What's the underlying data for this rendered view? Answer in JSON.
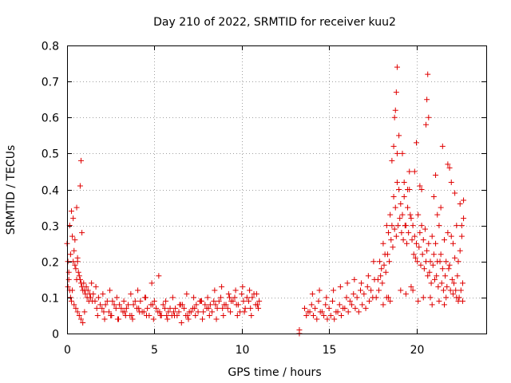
{
  "chart_data": {
    "type": "scatter",
    "title": "Day 210 of 2022, SRMTID for receiver kuu2",
    "xlabel": "GPS time / hours",
    "ylabel": "SRMTID / TECUs",
    "xlim": [
      0,
      24
    ],
    "ylim": [
      0,
      0.8
    ],
    "xticks": [
      0,
      5,
      10,
      15,
      20
    ],
    "xtick_labels": [
      "0",
      "5",
      "10",
      "15",
      "20"
    ],
    "yticks": [
      0,
      0.1,
      0.2,
      0.3,
      0.4,
      0.5,
      0.6,
      0.7,
      0.8
    ],
    "ytick_labels": [
      "0",
      "0.1",
      "0.2",
      "0.3",
      "0.4",
      "0.5",
      "0.6",
      "0.7",
      "0.8"
    ],
    "grid": true,
    "marker": "+",
    "color": "#e00000",
    "series": [
      {
        "name": "SRMTID",
        "x": [
          0.0,
          0.05,
          0.1,
          0.15,
          0.2,
          0.25,
          0.3,
          0.35,
          0.4,
          0.45,
          0.5,
          0.55,
          0.6,
          0.65,
          0.7,
          0.75,
          0.8,
          0.85,
          0.9,
          0.95,
          1.0,
          1.05,
          1.1,
          1.15,
          1.2,
          1.25,
          1.3,
          1.35,
          1.4,
          1.45,
          1.5,
          0.1,
          0.2,
          0.3,
          0.4,
          0.5,
          0.6,
          0.7,
          0.8,
          0.9,
          1.0,
          0.35,
          0.55,
          0.75,
          0.8,
          0.85,
          0.6,
          0.45,
          0.25,
          0.15,
          0.05,
          1.6,
          1.8,
          2.0,
          2.2,
          2.4,
          2.6,
          2.8,
          3.0,
          3.2,
          3.4,
          3.6,
          3.8,
          4.0,
          4.2,
          4.4,
          4.6,
          4.8,
          5.0,
          5.2,
          5.4,
          5.6,
          5.8,
          6.0,
          6.2,
          6.4,
          6.6,
          6.8,
          7.0,
          7.2,
          7.4,
          7.6,
          7.8,
          8.0,
          8.2,
          8.4,
          8.6,
          8.8,
          9.0,
          9.2,
          9.4,
          9.6,
          9.8,
          10.0,
          10.2,
          10.4,
          10.6,
          10.8,
          11.0,
          1.7,
          1.9,
          2.1,
          2.3,
          2.5,
          2.7,
          2.9,
          3.1,
          3.3,
          3.5,
          3.7,
          3.9,
          4.1,
          4.3,
          4.5,
          4.7,
          4.9,
          5.1,
          5.3,
          5.5,
          5.7,
          5.9,
          6.1,
          6.3,
          6.5,
          6.7,
          6.9,
          7.1,
          7.3,
          7.5,
          7.7,
          7.9,
          8.1,
          8.3,
          8.5,
          8.7,
          8.9,
          9.1,
          9.3,
          9.5,
          9.7,
          9.9,
          10.1,
          10.3,
          10.5,
          10.7,
          10.9,
          1.65,
          2.05,
          2.45,
          2.85,
          3.25,
          3.65,
          4.05,
          4.45,
          4.85,
          5.25,
          5.65,
          6.05,
          6.45,
          6.85,
          7.25,
          7.65,
          8.05,
          8.45,
          8.85,
          9.25,
          9.65,
          10.05,
          10.45,
          10.85,
          1.75,
          2.15,
          2.55,
          2.95,
          3.35,
          3.75,
          4.15,
          4.55,
          4.95,
          5.35,
          5.75,
          6.15,
          6.55,
          6.95,
          7.35,
          7.75,
          8.15,
          8.55,
          8.95,
          9.35,
          9.75,
          10.15,
          10.55,
          10.95,
          13.3,
          13.3,
          13.6,
          13.8,
          14.0,
          14.2,
          14.4,
          14.6,
          14.8,
          15.0,
          15.2,
          15.4,
          15.6,
          15.8,
          16.0,
          16.2,
          16.4,
          16.6,
          16.8,
          17.0,
          17.2,
          17.4,
          17.6,
          13.7,
          13.9,
          14.1,
          14.3,
          14.5,
          14.7,
          14.9,
          15.1,
          15.3,
          15.5,
          15.7,
          15.9,
          16.1,
          16.3,
          16.5,
          16.7,
          16.9,
          17.1,
          17.3,
          17.5,
          14.05,
          14.45,
          14.85,
          15.25,
          15.65,
          16.05,
          16.45,
          16.85,
          17.25,
          17.55,
          17.8,
          17.9,
          18.0,
          18.1,
          18.2,
          18.3,
          18.4,
          18.5,
          18.6,
          18.7,
          18.8,
          18.9,
          19.0,
          19.1,
          19.2,
          19.3,
          19.4,
          19.5,
          19.6,
          19.7,
          19.8,
          19.9,
          20.0,
          20.1,
          20.2,
          20.3,
          20.4,
          20.5,
          20.6,
          20.7,
          20.8,
          20.9,
          21.0,
          21.1,
          21.2,
          21.3,
          21.4,
          21.5,
          21.6,
          21.7,
          21.8,
          21.9,
          22.0,
          22.1,
          22.2,
          22.3,
          22.4,
          22.5,
          22.6,
          22.7,
          17.85,
          17.95,
          18.05,
          18.15,
          18.25,
          18.35,
          18.45,
          18.55,
          18.65,
          18.75,
          18.85,
          18.95,
          19.05,
          19.15,
          19.25,
          19.35,
          19.45,
          19.55,
          19.65,
          19.75,
          19.85,
          19.95,
          20.05,
          20.15,
          20.25,
          20.35,
          20.45,
          20.55,
          20.65,
          20.75,
          20.85,
          20.95,
          21.05,
          21.15,
          21.25,
          21.35,
          21.45,
          21.55,
          21.65,
          21.75,
          21.85,
          21.95,
          22.05,
          22.15,
          22.25,
          22.35,
          22.45,
          22.55,
          22.65,
          18.8,
          18.85,
          18.9,
          18.75,
          19.0,
          19.2,
          20.6,
          20.65,
          20.7,
          20.55,
          19.6,
          20.0,
          21.5,
          21.9,
          22.7,
          18.6,
          18.7,
          19.3,
          19.9,
          20.3,
          21.0,
          21.2,
          21.4,
          22.0,
          22.2,
          22.5,
          18.9,
          19.5,
          20.2,
          21.1,
          21.8,
          22.6,
          18.3,
          18.5,
          19.4,
          19.8,
          20.4,
          20.9,
          21.3,
          21.7,
          22.1,
          22.4,
          18.1,
          18.4,
          19.1,
          19.7,
          20.1,
          20.8,
          21.6,
          22.3,
          22.65,
          17.7
        ],
        "y": [
          0.25,
          0.2,
          0.17,
          0.3,
          0.22,
          0.34,
          0.27,
          0.2,
          0.23,
          0.19,
          0.18,
          0.15,
          0.2,
          0.17,
          0.16,
          0.15,
          0.14,
          0.13,
          0.12,
          0.14,
          0.12,
          0.11,
          0.13,
          0.1,
          0.12,
          0.09,
          0.11,
          0.1,
          0.14,
          0.09,
          0.11,
          0.15,
          0.1,
          0.12,
          0.08,
          0.07,
          0.06,
          0.05,
          0.04,
          0.03,
          0.06,
          0.32,
          0.35,
          0.41,
          0.48,
          0.28,
          0.21,
          0.26,
          0.09,
          0.12,
          0.13,
          0.09,
          0.1,
          0.07,
          0.08,
          0.06,
          0.09,
          0.07,
          0.08,
          0.06,
          0.07,
          0.05,
          0.08,
          0.07,
          0.09,
          0.06,
          0.07,
          0.08,
          0.09,
          0.06,
          0.05,
          0.07,
          0.06,
          0.05,
          0.07,
          0.06,
          0.08,
          0.05,
          0.06,
          0.07,
          0.08,
          0.09,
          0.06,
          0.07,
          0.08,
          0.09,
          0.07,
          0.1,
          0.08,
          0.07,
          0.09,
          0.1,
          0.08,
          0.11,
          0.07,
          0.09,
          0.1,
          0.08,
          0.09,
          0.07,
          0.08,
          0.06,
          0.09,
          0.05,
          0.08,
          0.04,
          0.07,
          0.06,
          0.08,
          0.05,
          0.09,
          0.07,
          0.06,
          0.1,
          0.05,
          0.08,
          0.07,
          0.06,
          0.08,
          0.05,
          0.07,
          0.06,
          0.05,
          0.08,
          0.07,
          0.05,
          0.06,
          0.07,
          0.06,
          0.09,
          0.08,
          0.07,
          0.06,
          0.08,
          0.09,
          0.07,
          0.08,
          0.1,
          0.09,
          0.08,
          0.06,
          0.09,
          0.1,
          0.07,
          0.11,
          0.08,
          0.13,
          0.11,
          0.12,
          0.1,
          0.09,
          0.11,
          0.12,
          0.1,
          0.14,
          0.16,
          0.09,
          0.1,
          0.08,
          0.11,
          0.1,
          0.09,
          0.1,
          0.12,
          0.13,
          0.11,
          0.12,
          0.13,
          0.12,
          0.11,
          0.05,
          0.04,
          0.05,
          0.04,
          0.05,
          0.04,
          0.06,
          0.05,
          0.04,
          0.05,
          0.04,
          0.05,
          0.03,
          0.04,
          0.05,
          0.04,
          0.05,
          0.04,
          0.05,
          0.06,
          0.05,
          0.06,
          0.05,
          0.07,
          0.0,
          0.01,
          0.07,
          0.06,
          0.08,
          0.07,
          0.09,
          0.06,
          0.08,
          0.07,
          0.09,
          0.06,
          0.08,
          0.07,
          0.1,
          0.09,
          0.11,
          0.1,
          0.12,
          0.11,
          0.13,
          0.12,
          0.15,
          0.05,
          0.06,
          0.05,
          0.04,
          0.06,
          0.05,
          0.04,
          0.05,
          0.04,
          0.06,
          0.05,
          0.07,
          0.06,
          0.08,
          0.07,
          0.06,
          0.08,
          0.07,
          0.09,
          0.1,
          0.11,
          0.12,
          0.1,
          0.12,
          0.13,
          0.14,
          0.15,
          0.14,
          0.16,
          0.2,
          0.15,
          0.2,
          0.18,
          0.25,
          0.22,
          0.3,
          0.28,
          0.33,
          0.3,
          0.38,
          0.35,
          0.42,
          0.4,
          0.36,
          0.33,
          0.38,
          0.3,
          0.35,
          0.4,
          0.32,
          0.3,
          0.27,
          0.25,
          0.33,
          0.28,
          0.3,
          0.26,
          0.29,
          0.23,
          0.25,
          0.2,
          0.27,
          0.22,
          0.25,
          0.2,
          0.3,
          0.22,
          0.18,
          0.26,
          0.2,
          0.28,
          0.19,
          0.27,
          0.25,
          0.21,
          0.3,
          0.2,
          0.23,
          0.27,
          0.32,
          0.12,
          0.16,
          0.14,
          0.19,
          0.17,
          0.22,
          0.2,
          0.26,
          0.24,
          0.29,
          0.27,
          0.3,
          0.32,
          0.28,
          0.26,
          0.3,
          0.25,
          0.28,
          0.33,
          0.26,
          0.22,
          0.21,
          0.2,
          0.24,
          0.19,
          0.22,
          0.18,
          0.2,
          0.16,
          0.17,
          0.14,
          0.19,
          0.15,
          0.16,
          0.13,
          0.2,
          0.14,
          0.12,
          0.16,
          0.13,
          0.18,
          0.12,
          0.15,
          0.14,
          0.12,
          0.16,
          0.1,
          0.12,
          0.14,
          0.62,
          0.67,
          0.74,
          0.6,
          0.55,
          0.5,
          0.65,
          0.72,
          0.6,
          0.58,
          0.45,
          0.53,
          0.52,
          0.46,
          0.37,
          0.48,
          0.52,
          0.42,
          0.45,
          0.4,
          0.38,
          0.33,
          0.35,
          0.42,
          0.39,
          0.36,
          0.5,
          0.4,
          0.41,
          0.44,
          0.47,
          0.3,
          0.1,
          0.09,
          0.11,
          0.12,
          0.1,
          0.08,
          0.09,
          0.1,
          0.11,
          0.09,
          0.08,
          0.1,
          0.12,
          0.13,
          0.09,
          0.1,
          0.08,
          0.1,
          0.09,
          0.1
        ]
      }
    ]
  }
}
